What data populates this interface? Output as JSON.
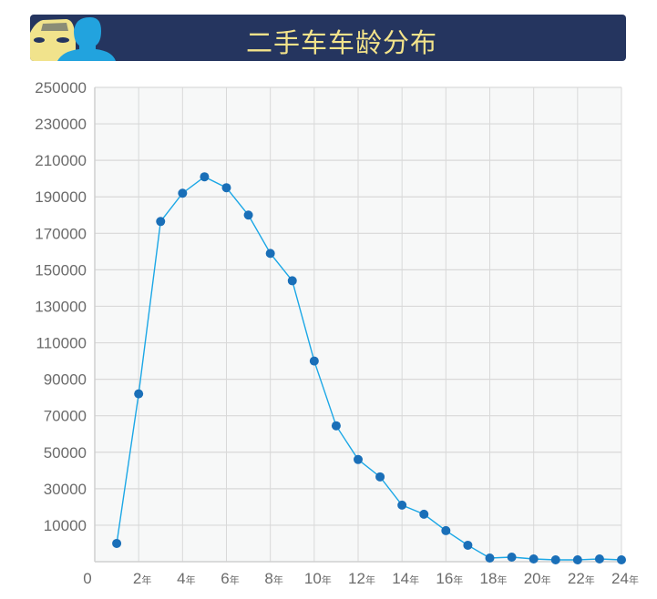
{
  "header": {
    "title": "二手车车龄分布",
    "icon": "car-and-person-icon"
  },
  "chart_data": {
    "type": "line",
    "title": "二手车车龄分布",
    "x": [
      1,
      2,
      3,
      4,
      5,
      6,
      7,
      8,
      9,
      10,
      11,
      12,
      13,
      14,
      15,
      16,
      17,
      18,
      19,
      20,
      21,
      22,
      23,
      24
    ],
    "values": [
      0,
      82000,
      176500,
      192000,
      201000,
      195000,
      180000,
      159000,
      144000,
      100000,
      64500,
      46000,
      36500,
      21000,
      16000,
      7000,
      -1000,
      -8000,
      -7500,
      -8500,
      -9000,
      -9000,
      -8500,
      -9000
    ],
    "xlim": [
      0,
      24
    ],
    "ylim": [
      -10000,
      250000
    ],
    "x_tick_labels": [
      "0",
      "2",
      "4",
      "6",
      "8",
      "10",
      "12",
      "14",
      "16",
      "18",
      "20",
      "22",
      "24"
    ],
    "x_tick_unit": "年",
    "y_tick_labels": [
      "10000",
      "30000",
      "50000",
      "70000",
      "90000",
      "110000",
      "130000",
      "150000",
      "170000",
      "190000",
      "210000",
      "230000",
      "250000"
    ],
    "grid": true,
    "colors": {
      "line": "#1ba7e6",
      "marker": "#1a6fb8",
      "plot_bg": "#f7f8f8",
      "grid": "#d9d9d9",
      "banner": "#25355f",
      "title": "#f3e38a"
    }
  }
}
